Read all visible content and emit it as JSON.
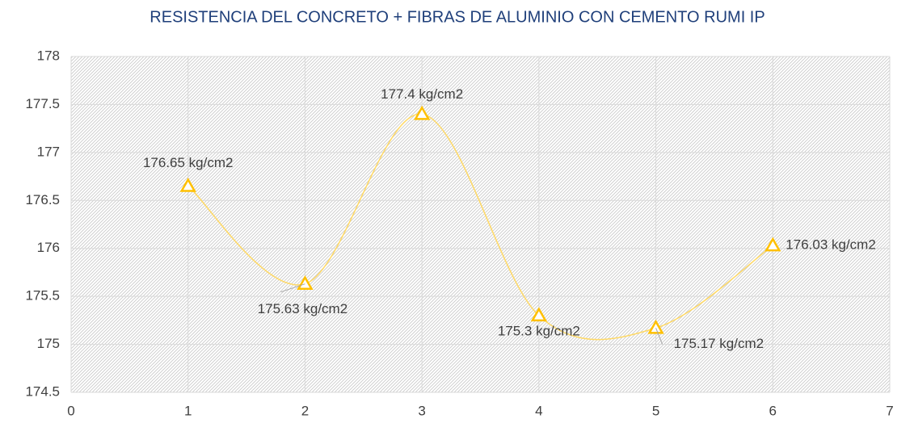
{
  "chart_data": {
    "type": "scatter",
    "title": "RESISTENCIA DEL CONCRETO + FIBRAS DE ALUMINIO CON CEMENTO RUMI IP",
    "x": [
      1,
      2,
      3,
      4,
      5,
      6
    ],
    "series": [
      {
        "color": "#ffc000",
        "line_color": "#ffd966",
        "values": [
          176.65,
          175.63,
          177.4,
          175.3,
          175.17,
          176.03
        ],
        "value_labels": [
          "176.65 kg/cm2",
          "175.63 kg/cm2",
          "177.4 kg/cm2",
          "175.3 kg/cm2",
          "175.17 kg/cm2",
          "176.03 kg/cm2"
        ]
      }
    ],
    "xlim": [
      0,
      7
    ],
    "xticks": [
      0,
      1,
      2,
      3,
      4,
      5,
      6,
      7
    ],
    "ylim": [
      174.5,
      178
    ],
    "yticks": [
      174.5,
      175,
      175.5,
      176,
      176.5,
      177,
      177.5,
      178
    ],
    "grid": true,
    "smooth": true
  }
}
